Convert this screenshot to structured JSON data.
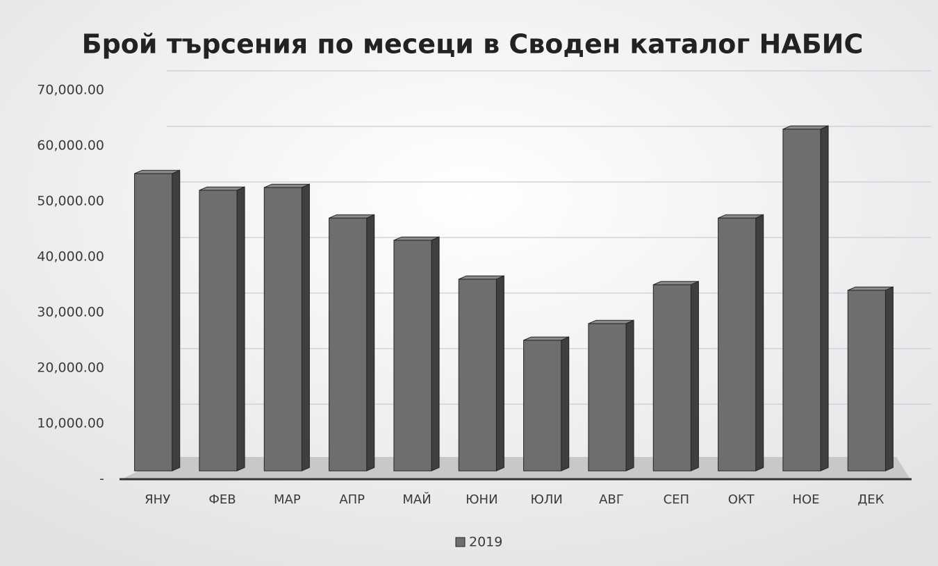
{
  "chart_data": {
    "type": "bar",
    "title": "Брой търсения по месеци в Своден каталог НАБИС",
    "categories": [
      "ЯНУ",
      "ФЕВ",
      "МАР",
      "АПР",
      "МАЙ",
      "ЮНИ",
      "ЮЛИ",
      "АВГ",
      "СЕП",
      "ОКТ",
      "НОЕ",
      "ДЕК"
    ],
    "series": [
      {
        "name": "2019",
        "color": "#6e6e6e",
        "values": [
          56000,
          53000,
          53500,
          48000,
          44000,
          37000,
          26000,
          29000,
          36000,
          48000,
          64000,
          35000
        ]
      }
    ],
    "ylim": [
      0,
      70000
    ],
    "yticks": [
      {
        "value": 0,
        "label": "-"
      },
      {
        "value": 10000,
        "label": "10,000.00"
      },
      {
        "value": 20000,
        "label": "20,000.00"
      },
      {
        "value": 30000,
        "label": "30,000.00"
      },
      {
        "value": 40000,
        "label": "40,000.00"
      },
      {
        "value": 50000,
        "label": "50,000.00"
      },
      {
        "value": 60000,
        "label": "60,000.00"
      },
      {
        "value": 70000,
        "label": "70,000.00"
      }
    ],
    "grid": true,
    "legend": "bottom"
  }
}
